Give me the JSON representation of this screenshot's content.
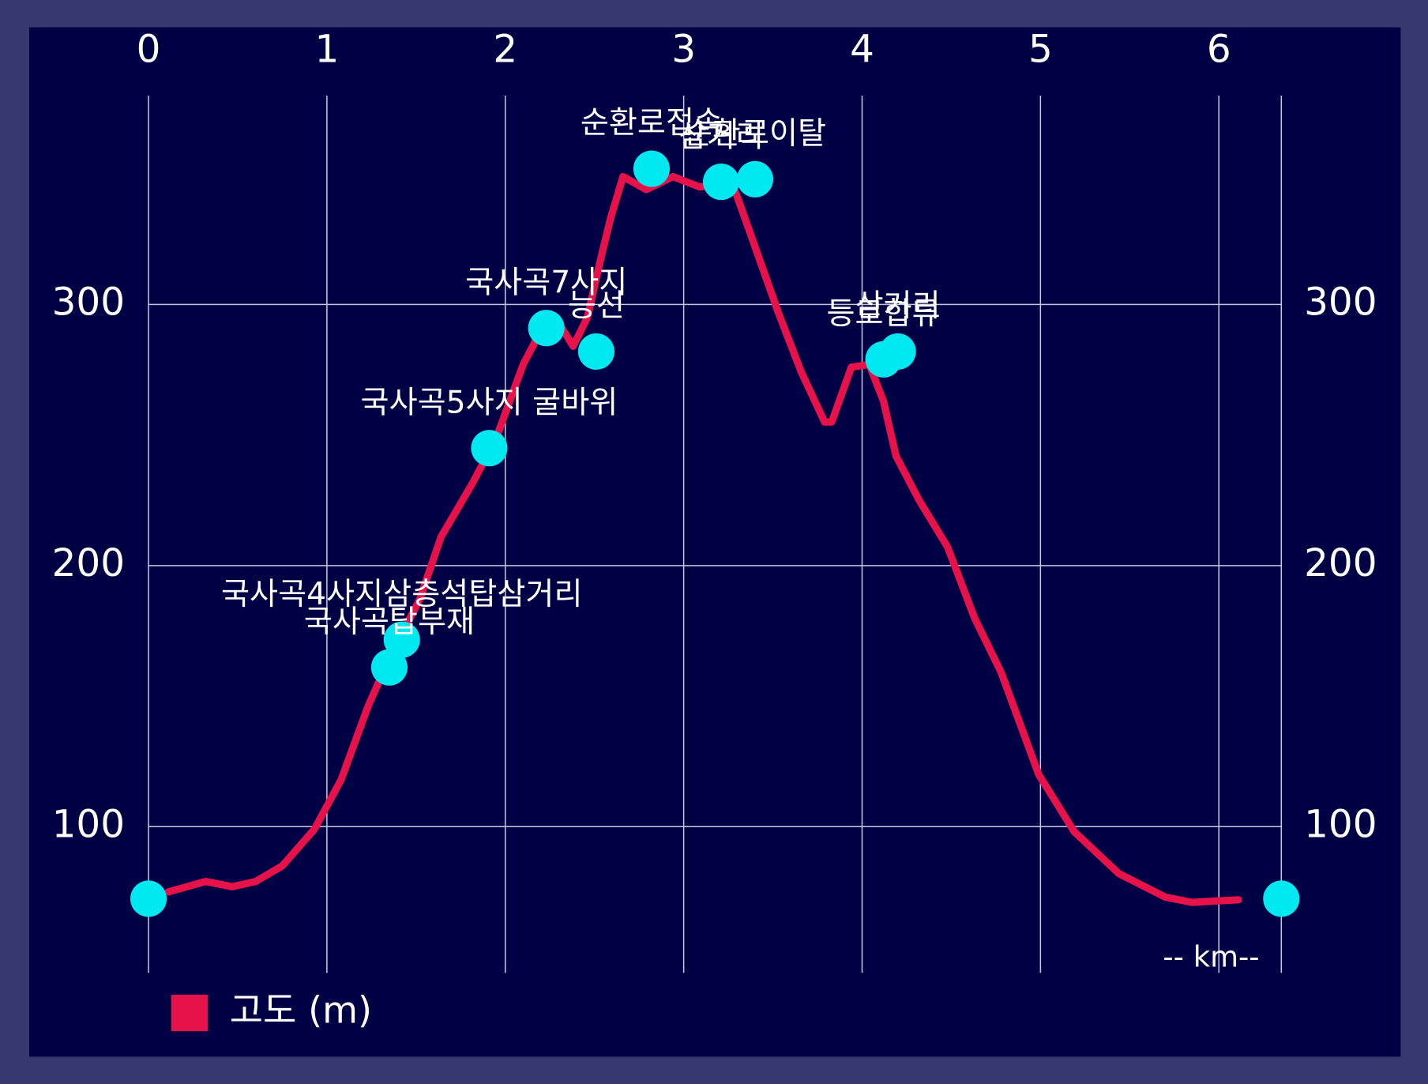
{
  "chart_data": {
    "type": "line",
    "x_label": "-- km--",
    "xlim": [
      0,
      6.35
    ],
    "ylim": [
      44,
      380
    ],
    "xticks": [
      0,
      1,
      2,
      3,
      4,
      5,
      6
    ],
    "yticks": [
      100,
      200,
      300
    ],
    "y2lim": [
      44,
      380
    ],
    "y2ticks": [
      100,
      200,
      300
    ],
    "grid": true,
    "legend": "bottom-left",
    "series": [
      {
        "name": "고도 (m)",
        "color": "#e8124a",
        "x": [
          0.11,
          0.32,
          0.47,
          0.6,
          0.75,
          0.93,
          1.08,
          1.23,
          1.36,
          1.52,
          1.64,
          1.82,
          1.95,
          2.1,
          2.2,
          2.3,
          2.38,
          2.46,
          2.54,
          2.59,
          2.66,
          2.79,
          2.94,
          3.09,
          3.27,
          3.38,
          3.53,
          3.66,
          3.79,
          3.83,
          3.94,
          4.04,
          4.12,
          4.19,
          4.32,
          4.48,
          4.63,
          4.78,
          4.99,
          5.19,
          5.44,
          5.7,
          5.85,
          6.11
        ],
        "values": [
          75,
          79,
          77,
          79,
          85,
          99,
          118,
          146,
          166,
          187,
          211,
          232,
          249,
          277,
          290,
          293,
          284,
          295,
          319,
          333,
          349,
          344,
          349,
          345,
          347,
          326,
          297,
          274,
          255,
          255,
          276,
          277,
          263,
          242,
          225,
          207,
          180,
          159,
          120,
          98,
          82,
          73,
          71,
          72
        ]
      }
    ],
    "markers": {
      "color": "#00e8f0",
      "x": [
        0,
        1.35,
        1.42,
        1.91,
        2.23,
        2.51,
        2.82,
        3.21,
        3.4,
        4.12,
        4.2,
        6.35
      ],
      "values": [
        72.4,
        161,
        171.6,
        245,
        291,
        282,
        352,
        347,
        348,
        279,
        282,
        72.4
      ],
      "labels": [
        null,
        "국사곡탑부재",
        "국사곡4사지삼층석탑삼거리",
        "국사곡5사지 굴바위",
        "국사곡7사지",
        "능선",
        "순환로접속",
        "삼거리",
        "순환로이탈",
        "등로합류",
        "삼거리",
        null
      ]
    }
  }
}
